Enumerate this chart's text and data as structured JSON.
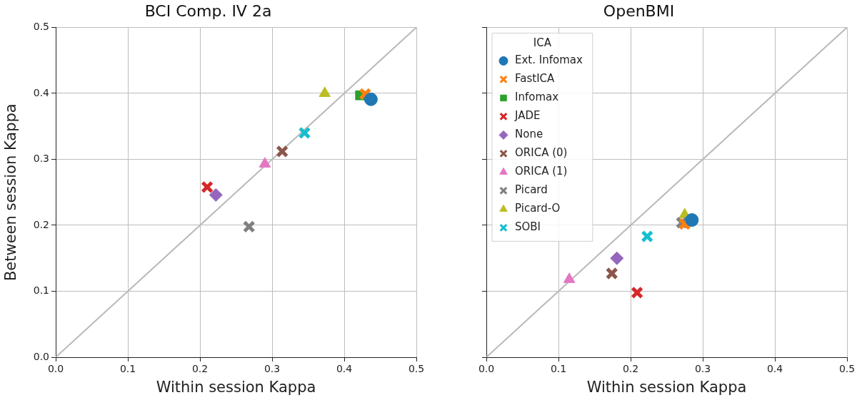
{
  "chart_data": [
    {
      "type": "scatter",
      "title": "BCI Comp. IV 2a",
      "xlabel": "Within session Kappa",
      "ylabel": "Between session Kappa",
      "xlim": [
        0,
        0.5
      ],
      "ylim": [
        0,
        0.5
      ],
      "xticks": [
        {
          "value": 0,
          "label": "0.0"
        },
        0.1,
        0.2,
        0.3,
        0.4,
        0.5
      ],
      "yticks": [
        {
          "value": 0,
          "label": "0.0"
        },
        0.1,
        0.2,
        0.3,
        0.4,
        0.5
      ],
      "grid": true,
      "legend": false,
      "series": [
        {
          "type": "line",
          "color": "#b8b8b8",
          "x": [
            0,
            0.5
          ],
          "values": [
            0,
            0.5
          ],
          "marker": "none"
        },
        {
          "color": "#1f77b4",
          "x": [
            0.437
          ],
          "values": [
            0.391
          ],
          "marker": "circle"
        },
        {
          "color": "#ff7f0e",
          "x": [
            0.429
          ],
          "values": [
            0.399
          ],
          "marker": "cross"
        },
        {
          "color": "#2ca02c",
          "x": [
            0.422
          ],
          "values": [
            0.397
          ],
          "marker": "square"
        },
        {
          "color": "#d62728",
          "x": [
            0.21
          ],
          "values": [
            0.258
          ],
          "marker": "cross"
        },
        {
          "color": "#9467bd",
          "x": [
            0.222
          ],
          "values": [
            0.246
          ],
          "marker": "diamond"
        },
        {
          "color": "#8c564b",
          "x": [
            0.314
          ],
          "values": [
            0.312
          ],
          "marker": "cross"
        },
        {
          "color": "#e377c2",
          "x": [
            0.29
          ],
          "values": [
            0.293
          ],
          "marker": "triangle"
        },
        {
          "color": "#7f7f7f",
          "x": [
            0.268
          ],
          "values": [
            0.198
          ],
          "marker": "cross"
        },
        {
          "color": "#bcbd22",
          "x": [
            0.373
          ],
          "values": [
            0.4
          ],
          "marker": "triangle"
        },
        {
          "color": "#17becf",
          "x": [
            0.345
          ],
          "values": [
            0.34
          ],
          "marker": "cross"
        }
      ]
    },
    {
      "type": "scatter",
      "title": "OpenBMI",
      "xlabel": "Within session Kappa",
      "xlim": [
        0,
        0.5
      ],
      "ylim": [
        0,
        0.5
      ],
      "xticks": [
        {
          "value": 0,
          "label": "0.0"
        },
        0.1,
        0.2,
        0.3,
        0.4,
        0.5
      ],
      "yticks": [
        0,
        0.1,
        0.2,
        0.3,
        0.4,
        0.5
      ],
      "tick_labels": "x",
      "grid": true,
      "legend": "top left",
      "legend_title": "ICA",
      "series": [
        {
          "type": "line",
          "color": "#b8b8b8",
          "x": [
            0,
            0.5
          ],
          "values": [
            0,
            0.5
          ],
          "marker": "none"
        },
        {
          "name": "Ext. Infomax",
          "color": "#1f77b4",
          "x": [
            0.285
          ],
          "values": [
            0.208
          ],
          "marker": "circle"
        },
        {
          "name": "FastICA",
          "color": "#ff7f0e",
          "x": [
            0.275
          ],
          "values": [
            0.202
          ],
          "marker": "cross"
        },
        {
          "name": "Infomax",
          "color": "#2ca02c",
          "x": [
            null
          ],
          "values": [
            null
          ],
          "marker": "square"
        },
        {
          "name": "JADE",
          "color": "#d62728",
          "x": [
            0.209
          ],
          "values": [
            0.098
          ],
          "marker": "cross"
        },
        {
          "name": "None",
          "color": "#9467bd",
          "x": [
            0.181
          ],
          "values": [
            0.15
          ],
          "marker": "diamond"
        },
        {
          "name": "ORICA (0)",
          "color": "#8c564b",
          "x": [
            0.174
          ],
          "values": [
            0.127
          ],
          "marker": "cross"
        },
        {
          "name": "ORICA (1)",
          "color": "#e377c2",
          "x": [
            0.115
          ],
          "values": [
            0.118
          ],
          "marker": "triangle"
        },
        {
          "name": "Picard",
          "color": "#7f7f7f",
          "x": [
            0.271
          ],
          "values": [
            0.204
          ],
          "marker": "cross"
        },
        {
          "name": "Picard-O",
          "color": "#bcbd22",
          "x": [
            0.275
          ],
          "values": [
            0.216
          ],
          "marker": "triangle"
        },
        {
          "name": "SOBI",
          "color": "#17becf",
          "x": [
            0.223
          ],
          "values": [
            0.183
          ],
          "marker": "cross"
        }
      ]
    }
  ]
}
